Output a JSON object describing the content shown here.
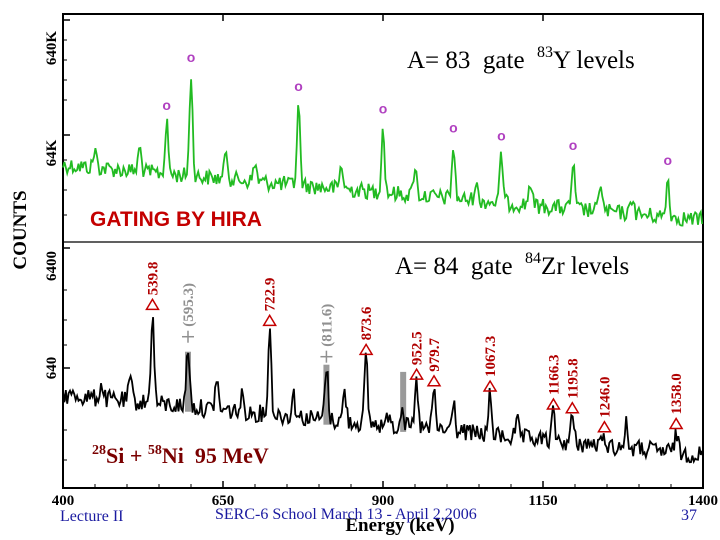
{
  "chart_data": {
    "type": "line",
    "xlabel": "Energy (keV)",
    "ylabel": "COUNTS",
    "xlim": [
      400,
      1400
    ],
    "x_ticks": [
      "400",
      "650",
      "900",
      "1150",
      "1400"
    ],
    "y_ticks_upper": [
      "640K",
      "64K",
      "6400"
    ],
    "y_ticks_lower": [
      "6400",
      "640"
    ],
    "log_scale_y": true,
    "annotation_gating": "GATING BY HIRA",
    "upper_panel": {
      "title_prefix": "A= 83  gate  ",
      "title_sup": "83",
      "title_suffix": "Y  levels",
      "line_color": "#22bb22",
      "marker_symbol": "o",
      "marker_color": "#b040c0",
      "peaks_x": [
        562,
        600,
        768,
        900,
        1010,
        1085,
        1197,
        1345
      ]
    },
    "lower_panel": {
      "title_prefix": "A= 84  gate  ",
      "title_sup": "84",
      "title_suffix": "Zr  levels",
      "line_color": "#000000",
      "peaks": [
        {
          "label": "539.8",
          "x": 539.8,
          "style": "triangle"
        },
        {
          "label": "(595.3)",
          "x": 595.3,
          "style": "cross"
        },
        {
          "label": "722.9",
          "x": 722.9,
          "style": "triangle"
        },
        {
          "label": "(811.6)",
          "x": 811.6,
          "style": "cross"
        },
        {
          "label": "873.6",
          "x": 873.6,
          "style": "triangle"
        },
        {
          "label": "952.5",
          "x": 952.5,
          "style": "triangle"
        },
        {
          "label": "979.7",
          "x": 979.7,
          "style": "triangle"
        },
        {
          "label": "1067.3",
          "x": 1067.3,
          "style": "triangle"
        },
        {
          "label": "1166.3",
          "x": 1166.3,
          "style": "triangle"
        },
        {
          "label": "1195.8",
          "x": 1195.8,
          "style": "triangle"
        },
        {
          "label": "1246.0",
          "x": 1246.0,
          "style": "triangle"
        },
        {
          "label": "1358.0",
          "x": 1358.0,
          "style": "triangle"
        }
      ]
    },
    "reaction": {
      "sup1": "28",
      "el1": "Si + ",
      "sup2": "58",
      "el2": "Ni  95 MeV"
    },
    "colors": {
      "peak_label": "#b00000",
      "bracket_label": "#909090",
      "triangle": "#c40000"
    }
  },
  "footer": {
    "left": "Lecture II",
    "center": "SERC-6 School March 13 - April 2,2006",
    "page": "37"
  }
}
